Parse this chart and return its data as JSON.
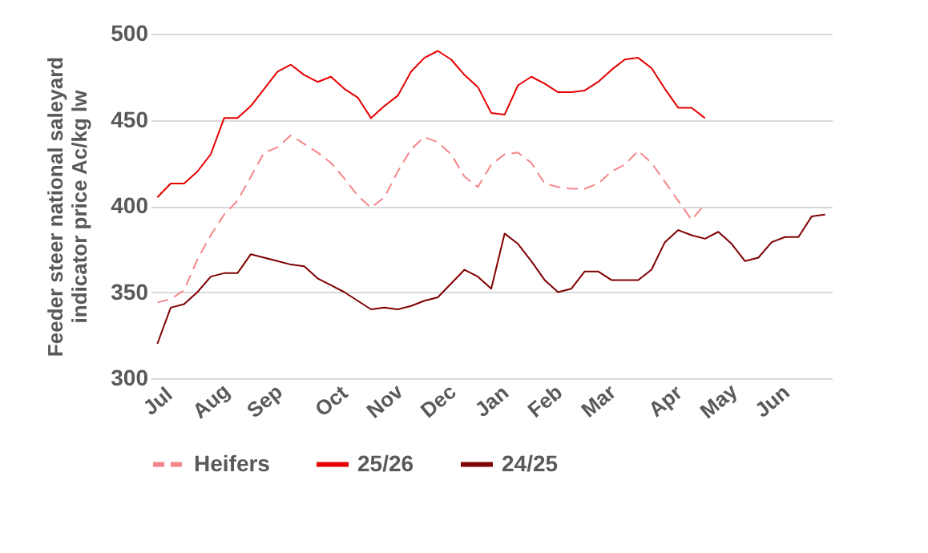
{
  "chart_data": {
    "type": "line",
    "ylabel": "Feeder steer national saleyard indicator price Ac/kg lw",
    "categories": [
      "Jul",
      null,
      null,
      null,
      "Aug",
      null,
      null,
      null,
      "Sep",
      null,
      null,
      null,
      null,
      "Oct",
      null,
      null,
      null,
      "Nov",
      null,
      null,
      null,
      "Dec",
      null,
      null,
      null,
      "Jan",
      null,
      null,
      null,
      "Feb",
      null,
      null,
      null,
      "Mar",
      null,
      null,
      null,
      null,
      "Apr",
      null,
      null,
      null,
      "May",
      null,
      null,
      null,
      "Jun",
      null,
      null,
      null,
      null
    ],
    "series": [
      {
        "name": "Heifers",
        "color": "#f4868a",
        "line_style": "dashed",
        "values": [
          344,
          346,
          351,
          369,
          383,
          395,
          403,
          417,
          431,
          434,
          441,
          436,
          431,
          425,
          416,
          406,
          399,
          405,
          420,
          433,
          440,
          437,
          430,
          417,
          411,
          424,
          430,
          431,
          425,
          413,
          411,
          410,
          410,
          413,
          420,
          424,
          432,
          425,
          414,
          403,
          392,
          401,
          null,
          null,
          null,
          null,
          null,
          null,
          null,
          null,
          null
        ]
      },
      {
        "name": "25/26",
        "color": "#e60000",
        "line_style": "solid",
        "values": [
          405,
          413,
          413,
          420,
          430,
          451,
          451,
          458,
          468,
          478,
          482,
          476,
          472,
          475,
          468,
          463,
          451,
          458,
          464,
          478,
          486,
          490,
          485,
          476,
          469,
          454,
          453,
          470,
          475,
          471,
          466,
          466,
          467,
          472,
          479,
          485,
          486,
          480,
          468,
          457,
          457,
          451,
          null,
          null,
          null,
          null,
          null,
          null,
          null,
          null,
          null
        ]
      },
      {
        "name": "24/25",
        "color": "#7f0000",
        "line_style": "solid",
        "values": [
          320,
          341,
          343,
          350,
          359,
          361,
          361,
          372,
          370,
          368,
          366,
          365,
          358,
          354,
          350,
          345,
          340,
          341,
          340,
          342,
          345,
          347,
          355,
          363,
          359,
          352,
          384,
          378,
          368,
          357,
          350,
          352,
          362,
          362,
          357,
          357,
          357,
          363,
          379,
          386,
          383,
          381,
          385,
          378,
          368,
          370,
          379,
          382,
          382,
          394,
          395
        ]
      }
    ],
    "ylim": [
      300,
      500
    ],
    "yticks": [
      300,
      350,
      400,
      450,
      500
    ],
    "grid": "y",
    "legend": "bottom",
    "marker": "none"
  }
}
